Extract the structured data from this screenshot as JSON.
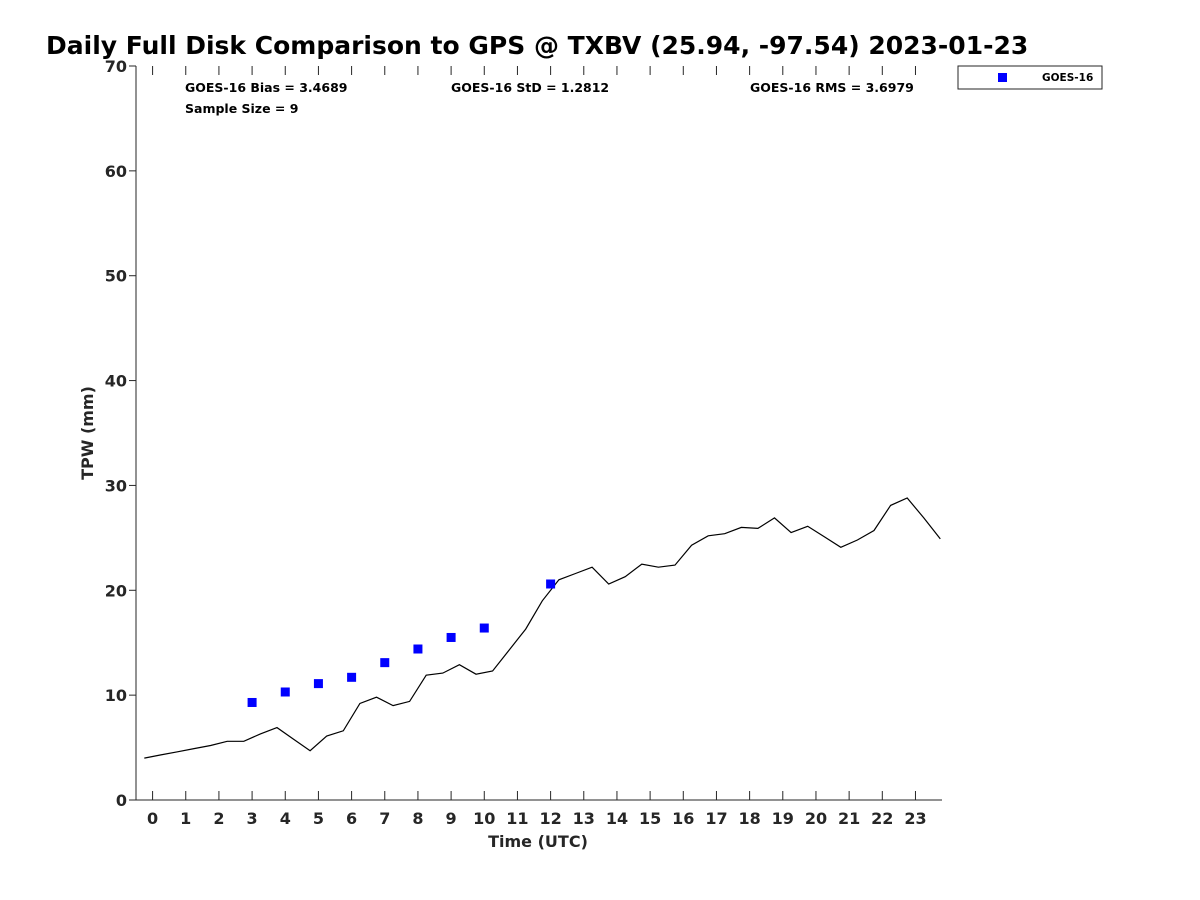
{
  "chart_data": {
    "type": "scatter",
    "title": "Daily Full Disk Comparison to GPS @ TXBV (25.94, -97.54) 2023-01-23",
    "xlabel": "Time (UTC)",
    "ylabel": "TPW (mm)",
    "xlim": [
      -0.5,
      23.8
    ],
    "ylim": [
      0,
      70
    ],
    "x_ticks": [
      "0",
      "1",
      "2",
      "3",
      "4",
      "5",
      "6",
      "7",
      "8",
      "9",
      "10",
      "11",
      "12",
      "13",
      "14",
      "15",
      "16",
      "17",
      "18",
      "19",
      "20",
      "21",
      "22",
      "23"
    ],
    "y_ticks": [
      "0",
      "10",
      "20",
      "30",
      "40",
      "50",
      "60",
      "70"
    ],
    "grid": false,
    "legend_position": "outside-top-right",
    "stats": {
      "bias": "GOES-16 Bias = 3.4689",
      "std": "GOES-16 StD = 1.2812",
      "rms": "GOES-16 RMS = 3.6979",
      "sample": "Sample Size = 9"
    },
    "series": [
      {
        "name": "GOES-16",
        "kind": "marker-square",
        "color": "#0000ff",
        "x": [
          3,
          4,
          5,
          6,
          7,
          8,
          9,
          10,
          12
        ],
        "y": [
          9.3,
          10.3,
          11.1,
          11.7,
          13.1,
          14.4,
          15.5,
          16.4,
          20.6
        ]
      },
      {
        "kind": "line",
        "color": "#000000",
        "x": [
          -0.25,
          0.25,
          0.75,
          1.25,
          1.75,
          2.25,
          2.75,
          3.25,
          3.75,
          4.25,
          4.75,
          5.25,
          5.75,
          6.25,
          6.75,
          7.25,
          7.75,
          8.25,
          8.75,
          9.25,
          9.75,
          10.25,
          10.75,
          11.25,
          11.75,
          12.25,
          12.75,
          13.25,
          13.75,
          14.25,
          14.75,
          15.25,
          15.75,
          16.25,
          16.75,
          17.25,
          17.75,
          18.25,
          18.75,
          19.25,
          19.75,
          20.25,
          20.75,
          21.25,
          21.75,
          22.25,
          22.75,
          23.25,
          23.75
        ],
        "y": [
          4.0,
          4.3,
          4.6,
          4.9,
          5.2,
          5.6,
          5.6,
          6.3,
          6.9,
          5.8,
          4.7,
          6.1,
          6.6,
          9.2,
          9.8,
          9.0,
          9.4,
          11.9,
          12.1,
          12.9,
          12.0,
          12.3,
          14.3,
          16.3,
          19.0,
          21.0,
          21.6,
          22.2,
          20.6,
          21.3,
          22.5,
          22.2,
          22.4,
          24.3,
          25.2,
          25.4,
          26.0,
          25.9,
          26.9,
          25.5,
          26.1,
          25.1,
          24.1,
          24.8,
          25.7,
          28.1,
          28.8,
          26.9,
          24.9
        ]
      }
    ]
  }
}
